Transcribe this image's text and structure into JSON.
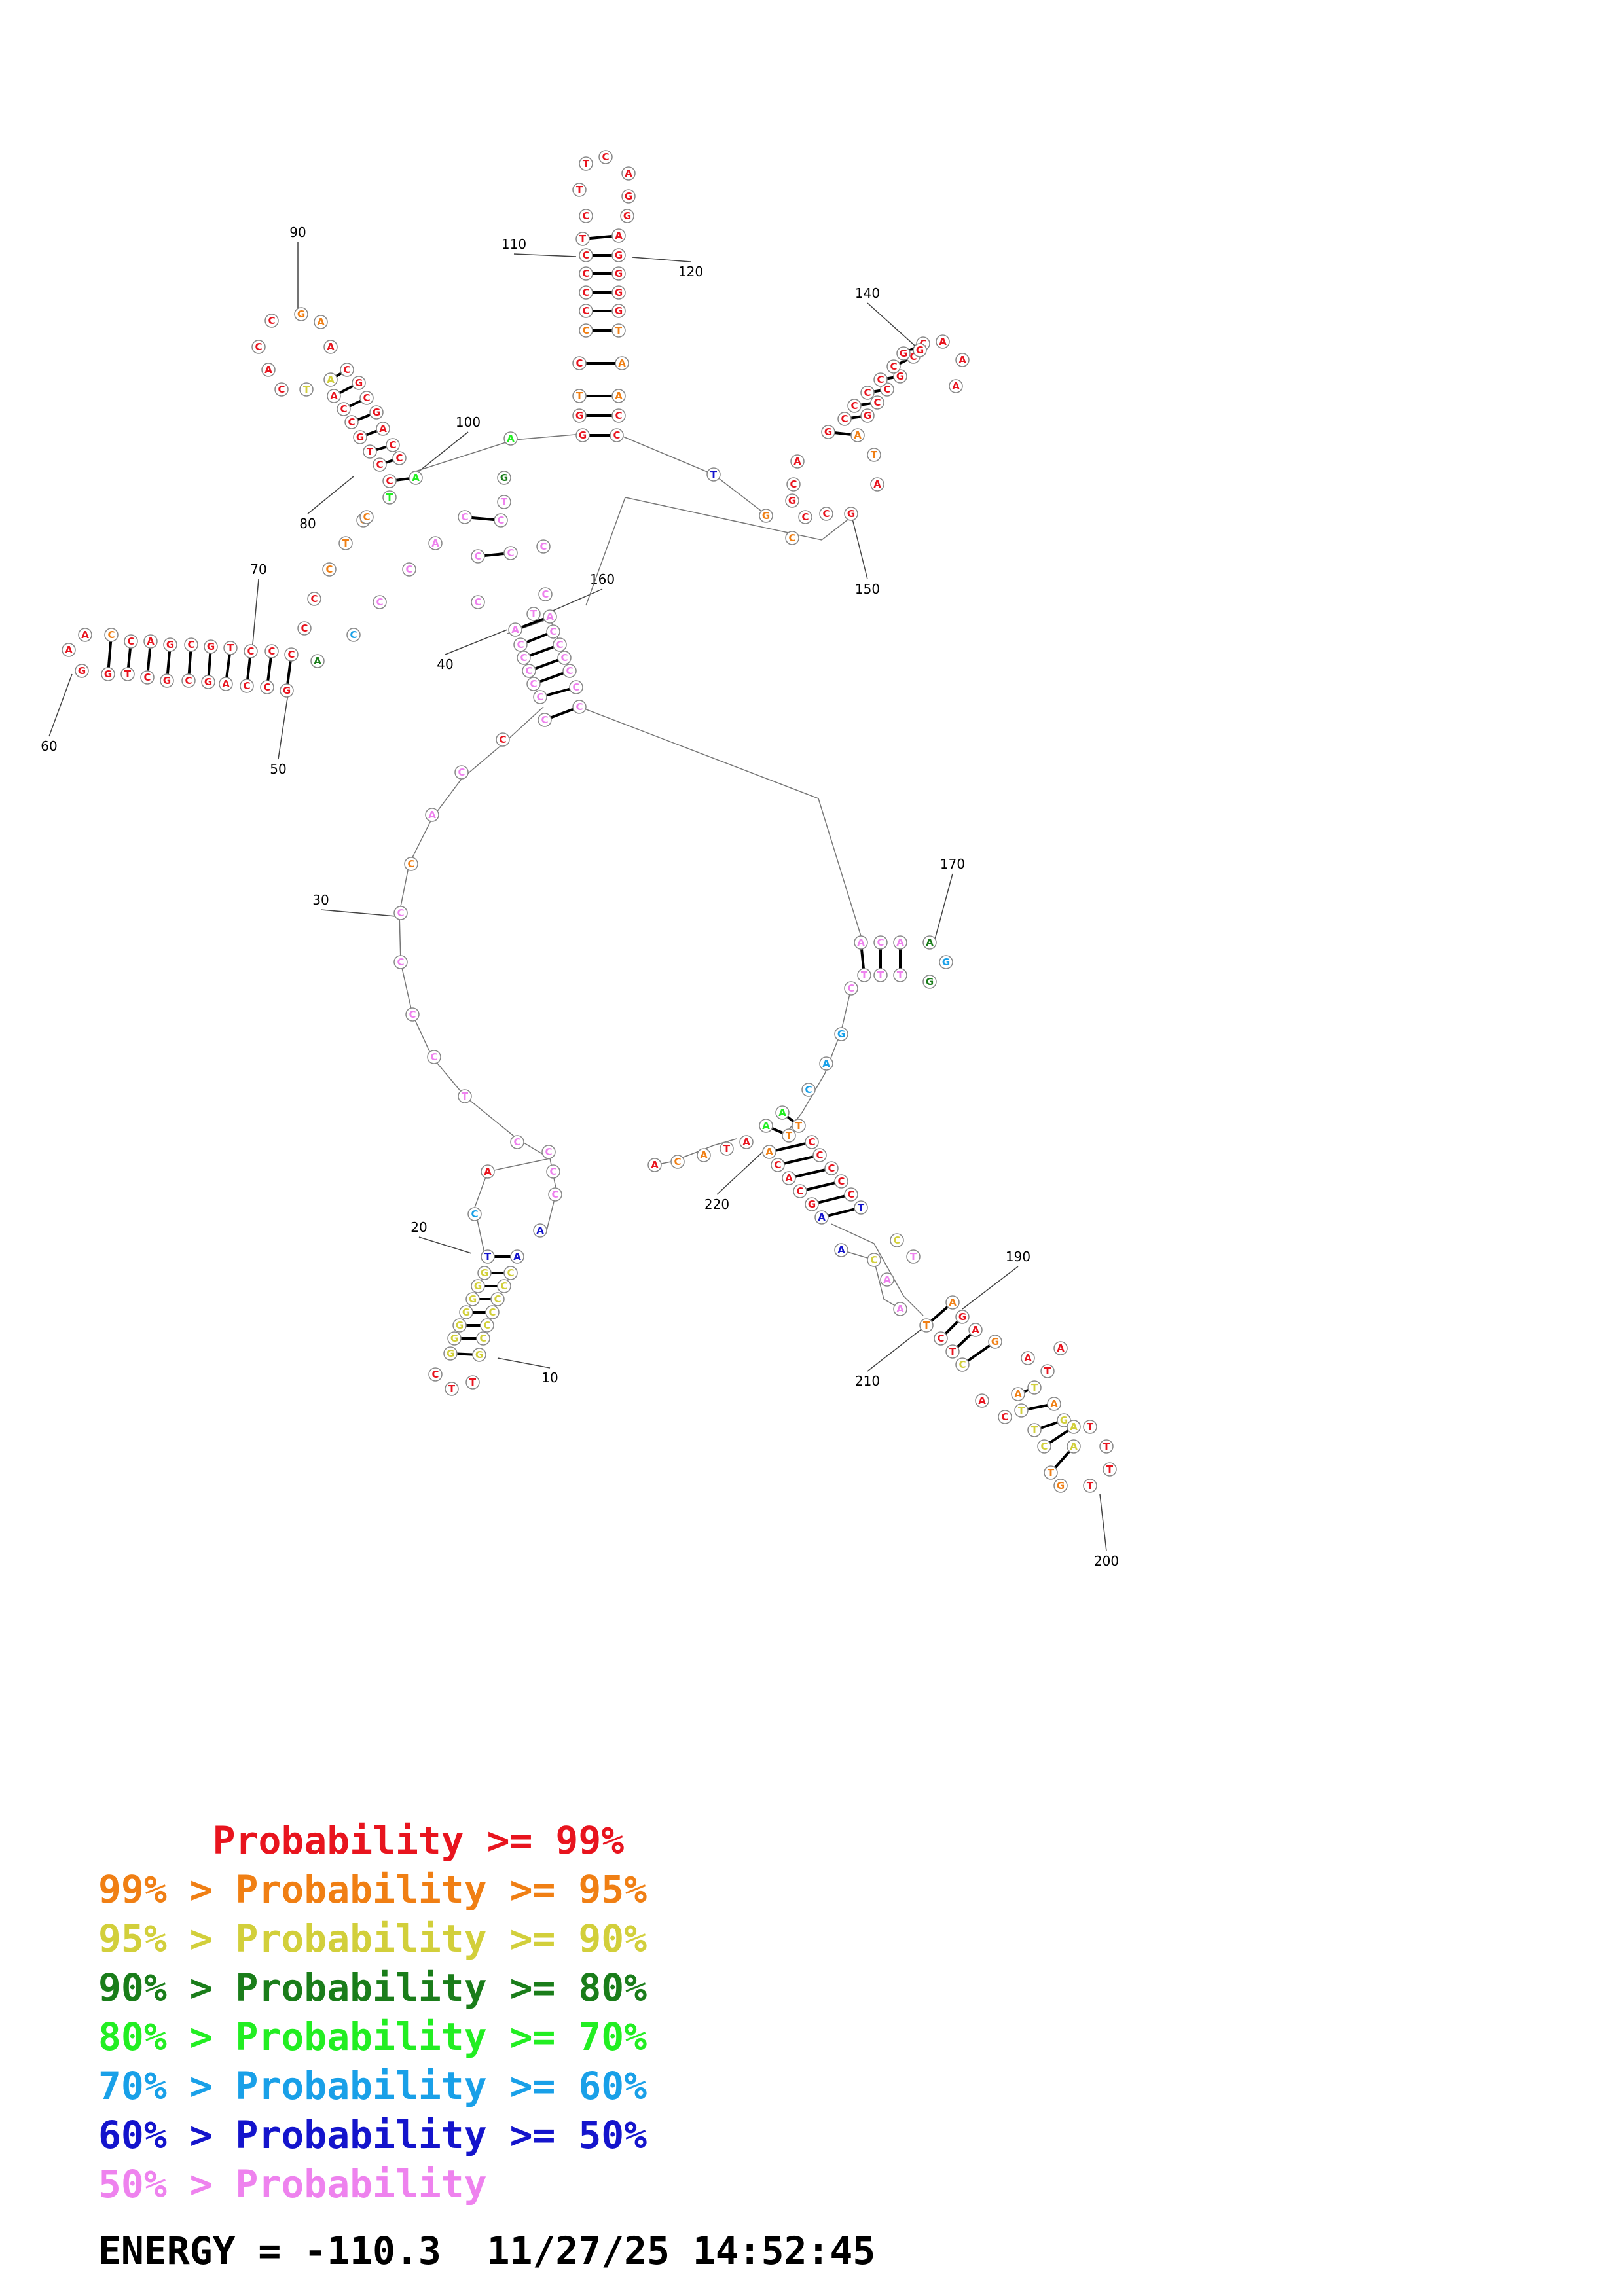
{
  "colors": {
    "c99": "#e8141e",
    "c95": "#f07f14",
    "c90": "#d2cf3b",
    "c80": "#1a7d1a",
    "c70": "#22ee22",
    "c60": "#19a0e8",
    "c50": "#1414cc",
    "clow": "#ee82ee"
  },
  "position_labels": [
    "10",
    "20",
    "30",
    "40",
    "50",
    "60",
    "70",
    "80",
    "90",
    "100",
    "110",
    "120",
    "140",
    "150",
    "160",
    "170",
    "190",
    "200",
    "210",
    "220"
  ],
  "legend": [
    {
      "prefix": "",
      "label": "Probability",
      "suffix": ">= 99%",
      "color": "#e8141e"
    },
    {
      "prefix": "99% >",
      "label": "Probability",
      "suffix": ">= 95%",
      "color": "#f07f14"
    },
    {
      "prefix": "95% >",
      "label": "Probability",
      "suffix": ">= 90%",
      "color": "#d2cf3b"
    },
    {
      "prefix": "90% >",
      "label": "Probability",
      "suffix": ">= 80%",
      "color": "#1a7d1a"
    },
    {
      "prefix": "80% >",
      "label": "Probability",
      "suffix": ">= 70%",
      "color": "#22ee22"
    },
    {
      "prefix": "70% >",
      "label": "Probability",
      "suffix": ">= 60%",
      "color": "#19a0e8"
    },
    {
      "prefix": "60% >",
      "label": "Probability",
      "suffix": ">= 50%",
      "color": "#1414cc"
    },
    {
      "prefix": "50% >",
      "label": "Probability",
      "suffix": "",
      "color": "#ee82ee"
    }
  ],
  "footer": {
    "energy": "ENERGY = -110.3",
    "timestamp": "11/27/25 14:52:45"
  }
}
